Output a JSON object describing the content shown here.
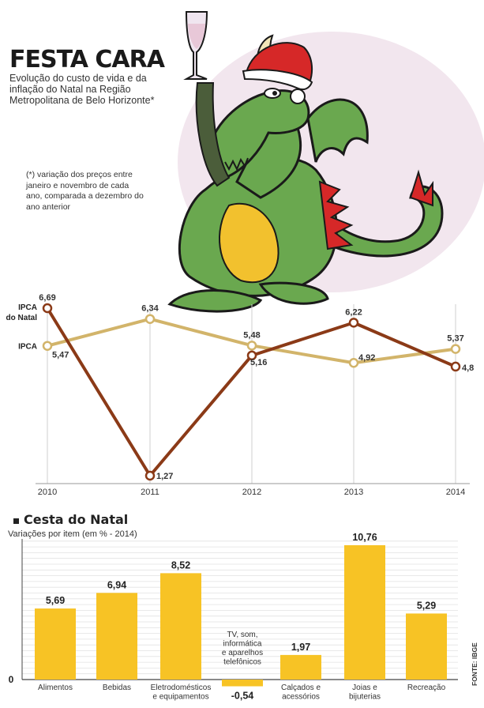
{
  "header": {
    "title": "FESTA CARA",
    "subtitle": "Evolução do custo de vida e da inflação do Natal na Região Metropolitana de Belo Horizonte*",
    "footnote": "(*) variação dos preços entre janeiro e novembro de cada ano, comparada a dezembro do ano anterior"
  },
  "colors": {
    "ipca_natal": "#8b3a17",
    "ipca": "#d2b46a",
    "bar": "#f7c325",
    "dragon_green": "#6aa84f",
    "dragon_belly": "#f2c12e",
    "hat_red": "#d62828",
    "halo": "#f2e6ee"
  },
  "illustration": {
    "icon": "dragon-santa-hat-champagne-icon"
  },
  "chart_data": [
    {
      "type": "line",
      "x": [
        "2010",
        "2011",
        "2012",
        "2013",
        "2014"
      ],
      "series": [
        {
          "name": "IPCA do Natal",
          "values": [
            6.69,
            1.27,
            5.16,
            6.22,
            4.8
          ],
          "labels": [
            "6,69",
            "1,27",
            "5,16",
            "6,22",
            "4,8"
          ]
        },
        {
          "name": "IPCA",
          "values": [
            5.47,
            6.34,
            5.48,
            4.92,
            5.37
          ],
          "labels": [
            "5,47",
            "6,34",
            "5,48",
            "4,92",
            "5,37"
          ]
        }
      ],
      "series_labels": [
        "IPCA do Natal",
        "IPCA"
      ],
      "ylim": [
        1.0,
        7.0
      ],
      "grid": "vertical"
    },
    {
      "type": "bar",
      "title": "Cesta do Natal",
      "subtitle": "Variações por item  (em % - 2014)",
      "categories": [
        "Alimentos",
        "Bebidas",
        "Eletrodomésticos e equipamentos",
        "TV, som, informática e aparelhos telefônicos",
        "Calçados e acessórios",
        "Joias e bijuterias",
        "Recreação"
      ],
      "category_labels": [
        [
          "Alimentos"
        ],
        [
          "Bebidas"
        ],
        [
          "Eletrodomésticos",
          "e equipamentos"
        ],
        [
          "TV, som,",
          "informática",
          "e aparelhos",
          "telefônicos"
        ],
        [
          "Calçados e",
          "acessórios"
        ],
        [
          "Joias e",
          "bijuterias"
        ],
        [
          "Recreação"
        ]
      ],
      "values": [
        5.69,
        6.94,
        8.52,
        -0.54,
        1.97,
        10.76,
        5.29
      ],
      "value_labels": [
        "5,69",
        "6,94",
        "8,52",
        "-0,54",
        "1,97",
        "10,76",
        "5,29"
      ],
      "zero_label": "0",
      "ylim": [
        -1,
        11
      ],
      "grid": "horizontal",
      "source": "FONTE: IBGE"
    }
  ]
}
